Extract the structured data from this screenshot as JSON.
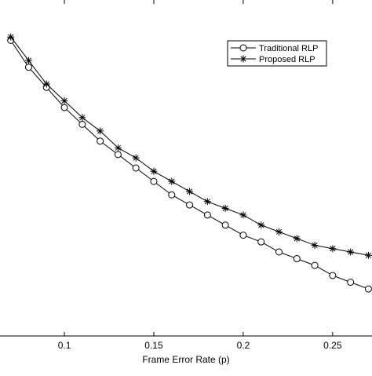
{
  "chart_data": {
    "type": "line",
    "x": [
      0.07,
      0.08,
      0.09,
      0.1,
      0.11,
      0.12,
      0.13,
      0.14,
      0.15,
      0.16,
      0.17,
      0.18,
      0.19,
      0.2,
      0.21,
      0.22,
      0.23,
      0.24,
      0.25,
      0.26,
      0.27
    ],
    "series": [
      {
        "name": "Traditional RLP",
        "color": "#000000",
        "marker": "circle",
        "values": [
          0.88,
          0.8,
          0.74,
          0.68,
          0.63,
          0.58,
          0.54,
          0.5,
          0.46,
          0.42,
          0.39,
          0.36,
          0.33,
          0.3,
          0.28,
          0.25,
          0.23,
          0.21,
          0.18,
          0.16,
          0.14
        ]
      },
      {
        "name": "Proposed RLP",
        "color": "#000000",
        "marker": "star",
        "values": [
          0.89,
          0.82,
          0.75,
          0.7,
          0.65,
          0.61,
          0.56,
          0.53,
          0.49,
          0.46,
          0.43,
          0.4,
          0.38,
          0.36,
          0.33,
          0.31,
          0.29,
          0.27,
          0.26,
          0.25,
          0.24
        ]
      }
    ],
    "x_label": "Frame Error Rate (p)",
    "xlim": [
      0.064,
      0.272
    ],
    "xticks": [
      0.1,
      0.15,
      0.2,
      0.25
    ],
    "ylim": [
      0,
      1
    ],
    "legend": "upper right"
  }
}
